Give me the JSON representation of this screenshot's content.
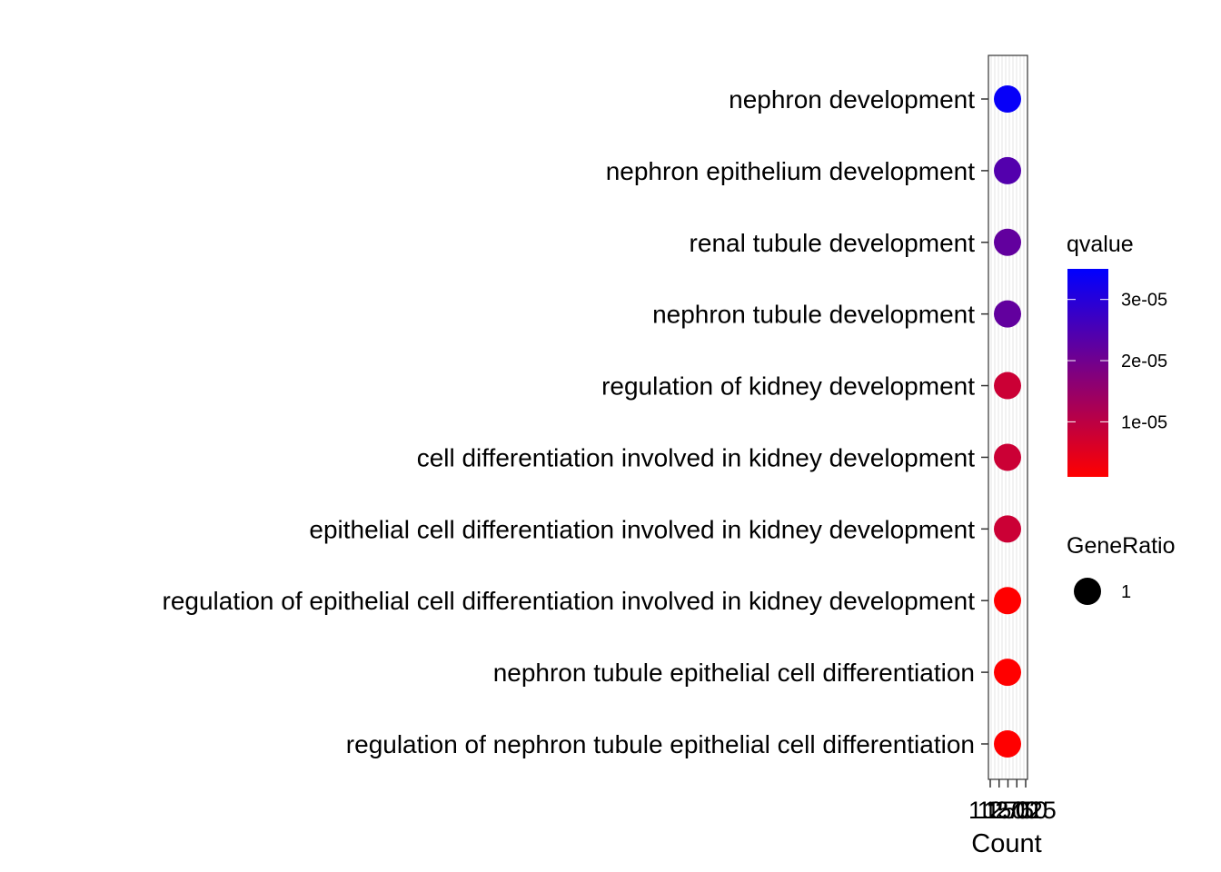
{
  "chart_data": {
    "type": "scatter",
    "xlabel": "Count",
    "ylabel": "",
    "x_ticks": [
      "1",
      "1.250",
      "1.500",
      "1.750",
      "2.025"
    ],
    "categories": [
      "nephron development",
      "nephron epithelium development",
      "renal tubule development",
      "nephron tubule development",
      "regulation of kidney development",
      "cell differentiation involved in kidney development",
      "epithelial cell differentiation involved in kidney development",
      "regulation of epithelial cell differentiation involved in kidney development",
      "nephron tubule epithelial cell differentiation",
      "regulation of nephron tubule epithelial cell differentiation"
    ],
    "points": [
      {
        "term": "nephron development",
        "count": 1,
        "gene_ratio": 1,
        "qvalue": 3.4e-05
      },
      {
        "term": "nephron epithelium development",
        "count": 1,
        "gene_ratio": 1,
        "qvalue": 2.4e-05
      },
      {
        "term": "renal tubule development",
        "count": 1,
        "gene_ratio": 1,
        "qvalue": 2.2e-05
      },
      {
        "term": "nephron tubule development",
        "count": 1,
        "gene_ratio": 1,
        "qvalue": 2.2e-05
      },
      {
        "term": "regulation of kidney development",
        "count": 1,
        "gene_ratio": 1,
        "qvalue": 8e-06
      },
      {
        "term": "cell differentiation involved in kidney development",
        "count": 1,
        "gene_ratio": 1,
        "qvalue": 8e-06
      },
      {
        "term": "epithelial cell differentiation involved in kidney development",
        "count": 1,
        "gene_ratio": 1,
        "qvalue": 8e-06
      },
      {
        "term": "regulation of epithelial cell differentiation involved in kidney development",
        "count": 1,
        "gene_ratio": 1,
        "qvalue": 1e-06
      },
      {
        "term": "nephron tubule epithelial cell differentiation",
        "count": 1,
        "gene_ratio": 1,
        "qvalue": 1e-06
      },
      {
        "term": "regulation of nephron tubule epithelial cell differentiation",
        "count": 1,
        "gene_ratio": 1,
        "qvalue": 1e-06
      }
    ],
    "color_legend": {
      "title": "qvalue",
      "range": [
        1e-06,
        3.5e-05
      ],
      "low_color": "#ff0000",
      "high_color": "#0000ff",
      "ticks": [
        {
          "value": 1e-05,
          "label": "1e-05"
        },
        {
          "value": 2e-05,
          "label": "2e-05"
        },
        {
          "value": 3e-05,
          "label": "3e-05"
        }
      ]
    },
    "size_legend": {
      "title": "GeneRatio",
      "entries": [
        {
          "value": 1,
          "label": "1"
        }
      ]
    },
    "grid": true,
    "legend_position": "right"
  }
}
